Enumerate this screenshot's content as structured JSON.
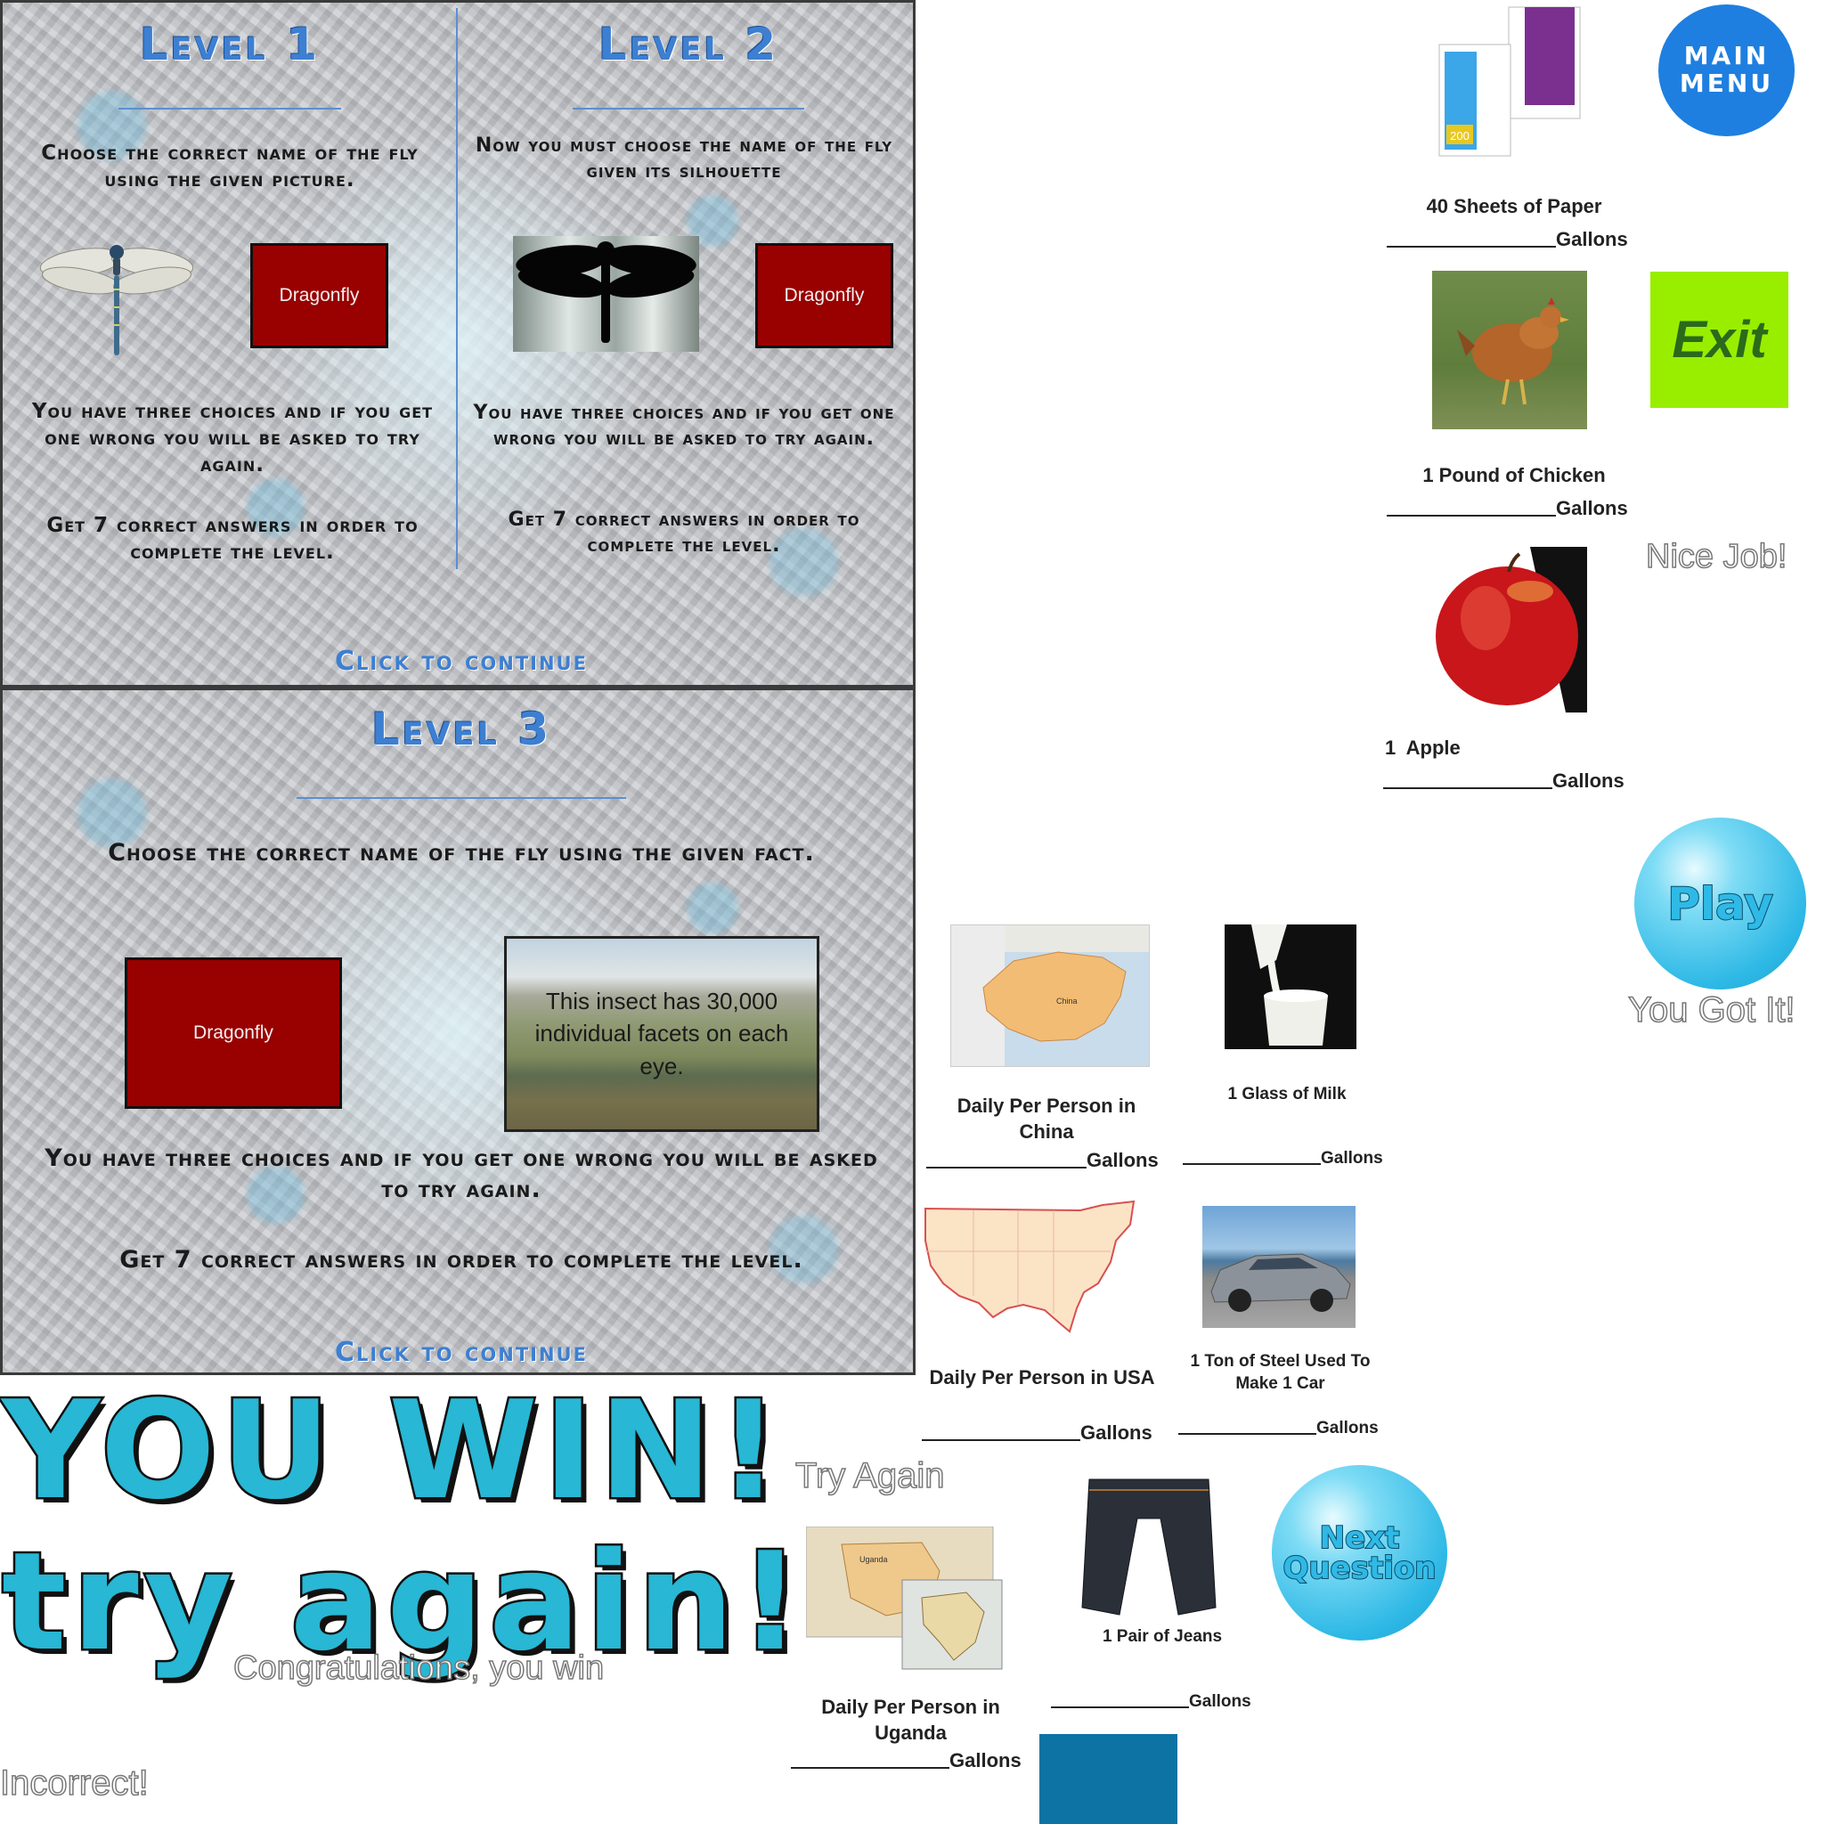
{
  "level1": {
    "title": "Level 1",
    "instruction": "Choose the correct name of the fly using the given picture.",
    "answer": "Dragonfly",
    "rules": "You have three choices and if you get one wrong you will be asked to try again.",
    "goal": "Get 7 correct answers in order to complete the level.",
    "continue": "Click to continue"
  },
  "level2": {
    "title": "Level 2",
    "instruction": "Now you must choose the name of the fly given its silhouette",
    "answer": "Dragonfly",
    "rules": "You have three choices and if you get one wrong you will be asked to try again.",
    "goal": "Get 7 correct answers in order to complete the level."
  },
  "level3": {
    "title": "Level 3",
    "instruction": "Choose the correct name of the fly using the given fact.",
    "answer": "Dragonfly",
    "fact": "This insect has 30,000 individual facets on each eye.",
    "rules": "You have three choices and if you get one wrong you will be asked to try again.",
    "goal": "Get 7 correct answers in order to complete the level.",
    "continue": "Click to continue"
  },
  "messages": {
    "you_win": "YOU WIN!",
    "try_again_big": "try again!",
    "try_again_small": "Try Again",
    "congrats": "Congratulations, you win",
    "incorrect": "Incorrect!",
    "nice_job": "Nice Job!",
    "you_got_it": "You Got It!"
  },
  "buttons": {
    "main_menu_1": "MAIN",
    "main_menu_2": "MENU",
    "exit": "Exit",
    "play": "Play",
    "next_1": "Next",
    "next_2": "Question"
  },
  "items": {
    "paper": {
      "label": "40 Sheets of Paper",
      "unit": "Gallons",
      "pack_number": "200"
    },
    "chicken": {
      "label": "1 Pound of Chicken",
      "unit": "Gallons"
    },
    "apple": {
      "label": "1  Apple",
      "unit": "Gallons"
    },
    "china": {
      "label": "Daily Per Person in China",
      "unit": "Gallons",
      "map_text": "China"
    },
    "milk": {
      "label": "1 Glass of Milk",
      "unit": "Gallons"
    },
    "usa": {
      "label": "Daily Per Person in USA",
      "unit": "Gallons"
    },
    "steel": {
      "label": "1 Ton of Steel Used To Make 1 Car",
      "unit": "Gallons"
    },
    "uganda": {
      "label": "Daily Per Person in Uganda",
      "unit": "Gallons",
      "map_text": "Uganda"
    },
    "jeans": {
      "label": "1 Pair of Jeans",
      "unit": "Gallons"
    }
  },
  "colors": {
    "answer_red": "#990000",
    "title_blue": "#3d7fd1",
    "bubble_cyan": "#28b7d4",
    "exit_green": "#99ee00",
    "main_menu_blue": "#1e7fe0",
    "teal_square": "#0c73a4"
  }
}
